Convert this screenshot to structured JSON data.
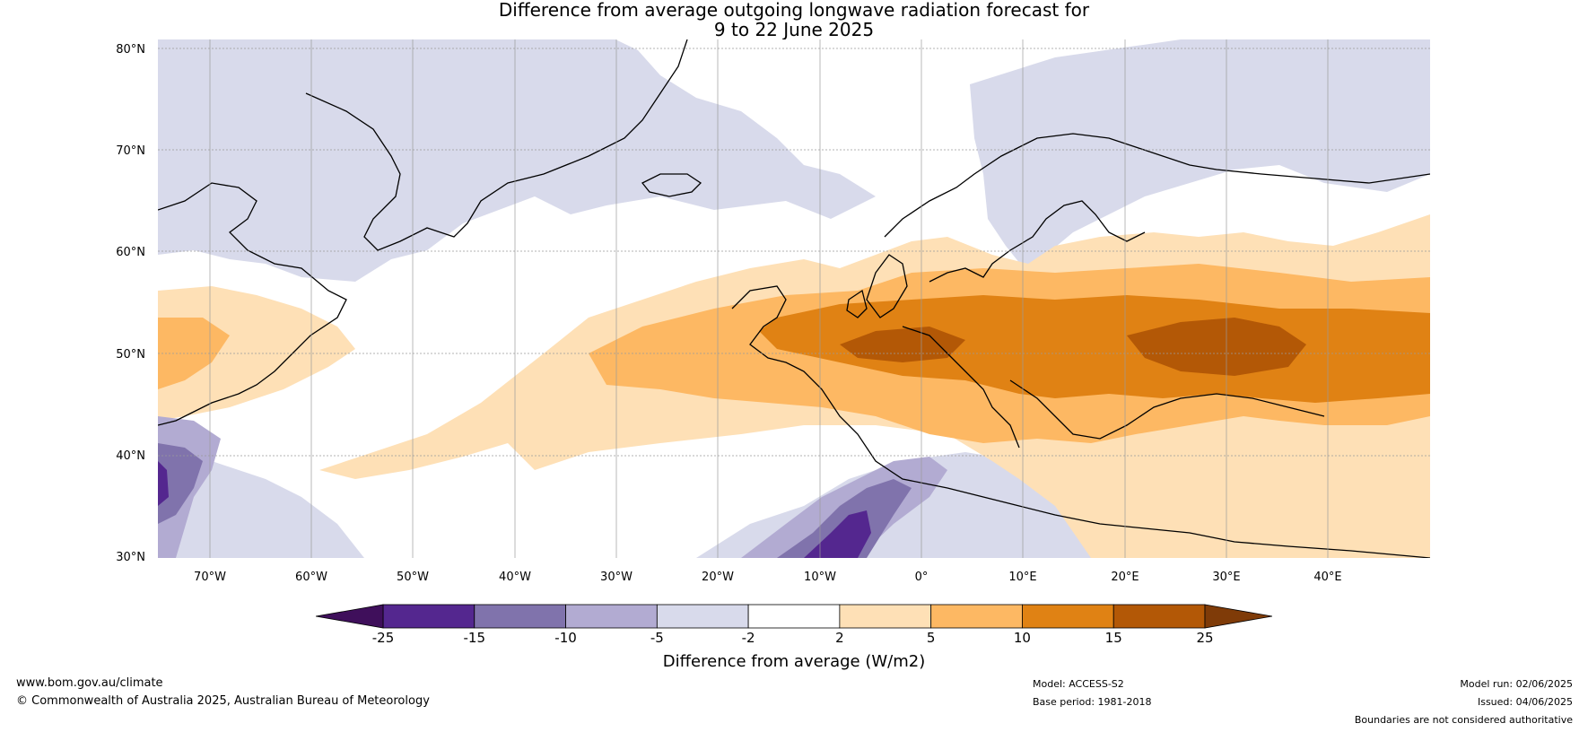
{
  "title": {
    "line1": "Difference from average outgoing longwave radiation forecast for",
    "line2": "9 to 22 June 2025"
  },
  "map": {
    "lat_labels": [
      "80°N",
      "70°N",
      "60°N",
      "50°N",
      "40°N",
      "30°N"
    ],
    "lon_labels": [
      "70°W",
      "60°W",
      "50°W",
      "40°W",
      "30°W",
      "20°W",
      "10°W",
      "0°",
      "10°E",
      "20°E",
      "30°E",
      "40°E"
    ],
    "lon_range": [
      -75,
      50
    ],
    "lat_range": [
      30,
      81
    ],
    "colors": {
      "neg25": "#3f0f5b",
      "neg15": "#54278f",
      "neg10": "#8073ac",
      "neg5": "#b2abd2",
      "neg2": "#d8daeb",
      "zero": "#ffffff",
      "pos2": "#fee0b6",
      "pos5": "#fdb863",
      "pos10": "#e08214",
      "pos15": "#b35806",
      "pos25": "#7f3b08",
      "coast": "#000000",
      "border": "#808080",
      "grid": "#9a9a9a"
    }
  },
  "colorbar": {
    "ticks": [
      "-25",
      "-15",
      "-10",
      "-5",
      "-2",
      "2",
      "5",
      "10",
      "15",
      "25"
    ],
    "label": "Difference from average (W/m2)",
    "colors": [
      "#54278f",
      "#8073ac",
      "#b2abd2",
      "#d8daeb",
      "#ffffff",
      "#fee0b6",
      "#fdb863",
      "#e08214",
      "#b35806"
    ],
    "low_extend_color": "#3f0f5b",
    "high_extend_color": "#7f3b08"
  },
  "footer": {
    "website": "www.bom.gov.au/climate",
    "copyright": "© Commonwealth of Australia 2025, Australian Bureau of Meteorology",
    "model": "Model: ACCESS-S2",
    "base_period": "Base period: 1981-2018",
    "model_run": "Model run: 02/06/2025",
    "issued": "Issued: 04/06/2025",
    "disclaimer": "Boundaries are not considered authoritative"
  }
}
